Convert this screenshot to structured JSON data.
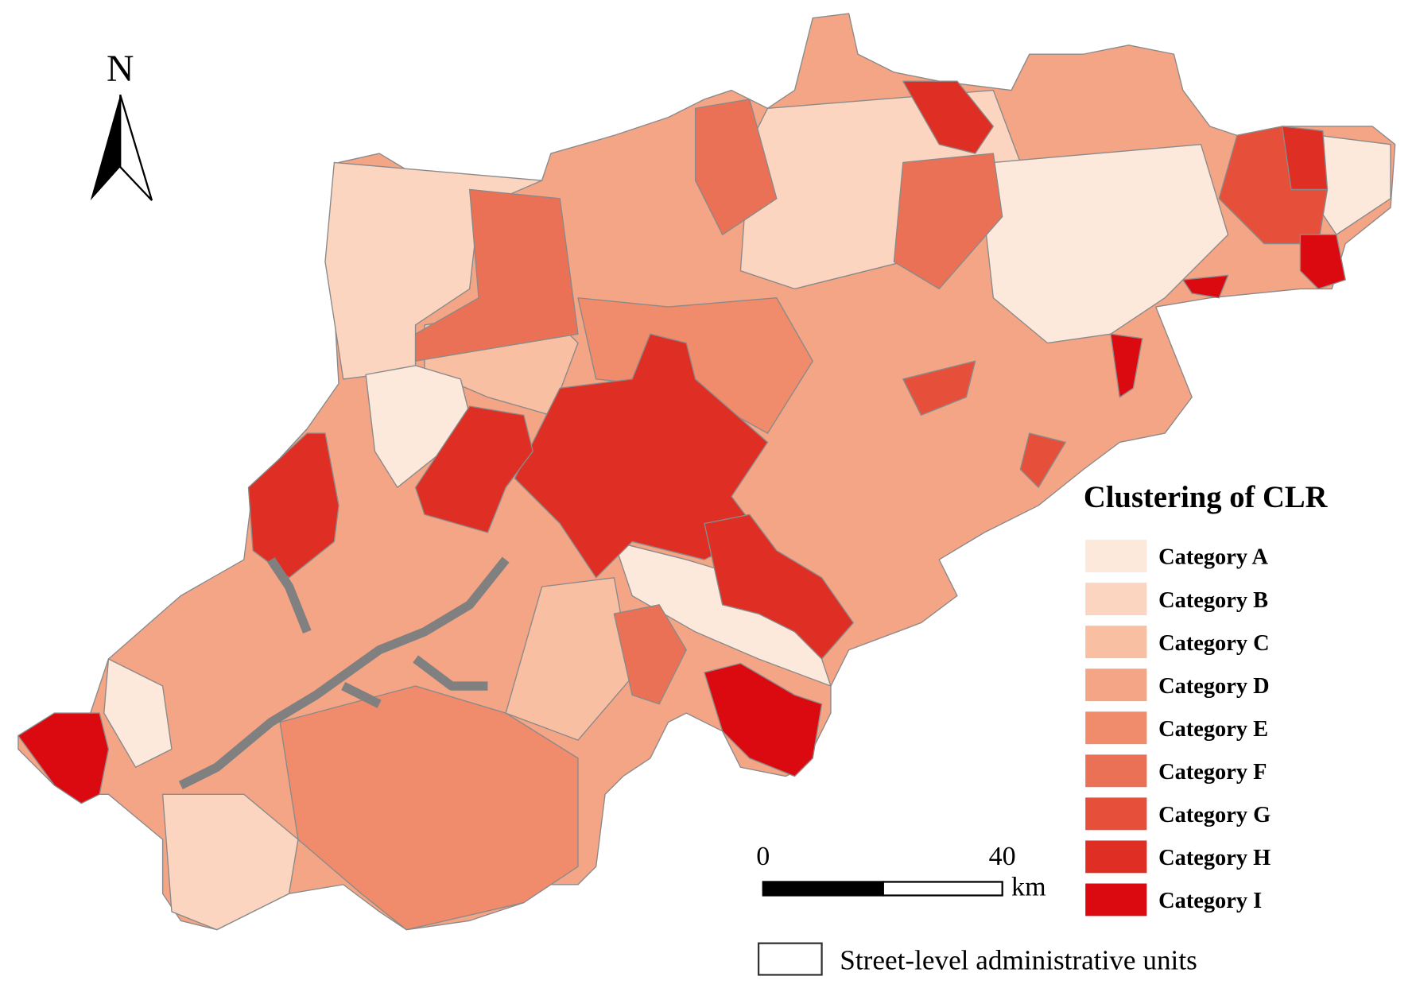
{
  "north": "N",
  "legend": {
    "title": "Clustering of CLR",
    "items": [
      {
        "label": "Category A",
        "color": "#fde9dc"
      },
      {
        "label": "Category B",
        "color": "#fbd5c0"
      },
      {
        "label": "Category C",
        "color": "#f8bfa2"
      },
      {
        "label": "Category D",
        "color": "#f4a585"
      },
      {
        "label": "Category E",
        "color": "#f08c6c"
      },
      {
        "label": "Category F",
        "color": "#eb7156"
      },
      {
        "label": "Category G",
        "color": "#e6503b"
      },
      {
        "label": "Category H",
        "color": "#df2e23"
      },
      {
        "label": "Category I",
        "color": "#da0a10"
      }
    ]
  },
  "scale_bar": {
    "start": 0,
    "end": 40,
    "unit": "km"
  },
  "boundary_legend": "Street-level administrative units"
}
